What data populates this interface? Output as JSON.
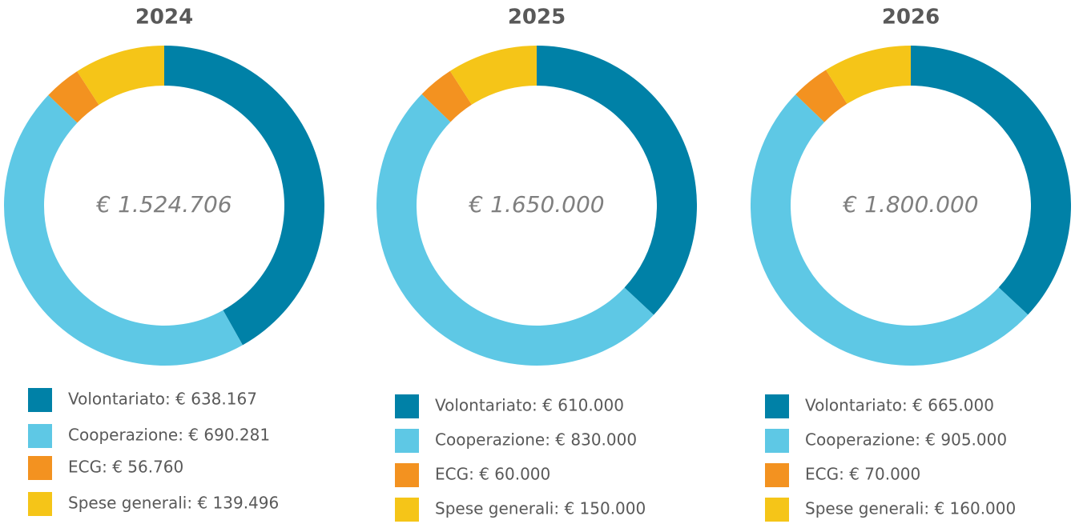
{
  "chart_data": [
    {
      "type": "donut",
      "title": "2024",
      "center_label": "€ 1.524.706",
      "categories": [
        "Volontariato",
        "Cooperazione",
        "ECG",
        "Spese generali"
      ],
      "values": [
        638167,
        690281,
        56760,
        139496
      ],
      "value_labels": [
        "Volontariato: € 638.167",
        "Cooperazione: € 690.281",
        "ECG: € 56.760",
        "Spese generali: € 139.496"
      ],
      "colors": [
        "#0081a7",
        "#5ec8e5",
        "#f39220",
        "#f5c518"
      ]
    },
    {
      "type": "donut",
      "title": "2025",
      "center_label": "€ 1.650.000",
      "categories": [
        "Volontariato",
        "Cooperazione",
        "ECG",
        "Spese generali"
      ],
      "values": [
        610000,
        830000,
        60000,
        150000
      ],
      "value_labels": [
        "Volontariato: € 610.000",
        "Cooperazione: € 830.000",
        "ECG: € 60.000",
        "Spese generali: € 150.000"
      ],
      "colors": [
        "#0081a7",
        "#5ec8e5",
        "#f39220",
        "#f5c518"
      ]
    },
    {
      "type": "donut",
      "title": "2026",
      "center_label": "€ 1.800.000",
      "categories": [
        "Volontariato",
        "Cooperazione",
        "ECG",
        "Spese generali"
      ],
      "values": [
        665000,
        905000,
        70000,
        160000
      ],
      "value_labels": [
        "Volontariato: € 665.000",
        "Cooperazione: € 905.000",
        "ECG: € 70.000",
        "Spese generali: € 160.000"
      ],
      "colors": [
        "#0081a7",
        "#5ec8e5",
        "#f39220",
        "#f5c518"
      ]
    }
  ]
}
